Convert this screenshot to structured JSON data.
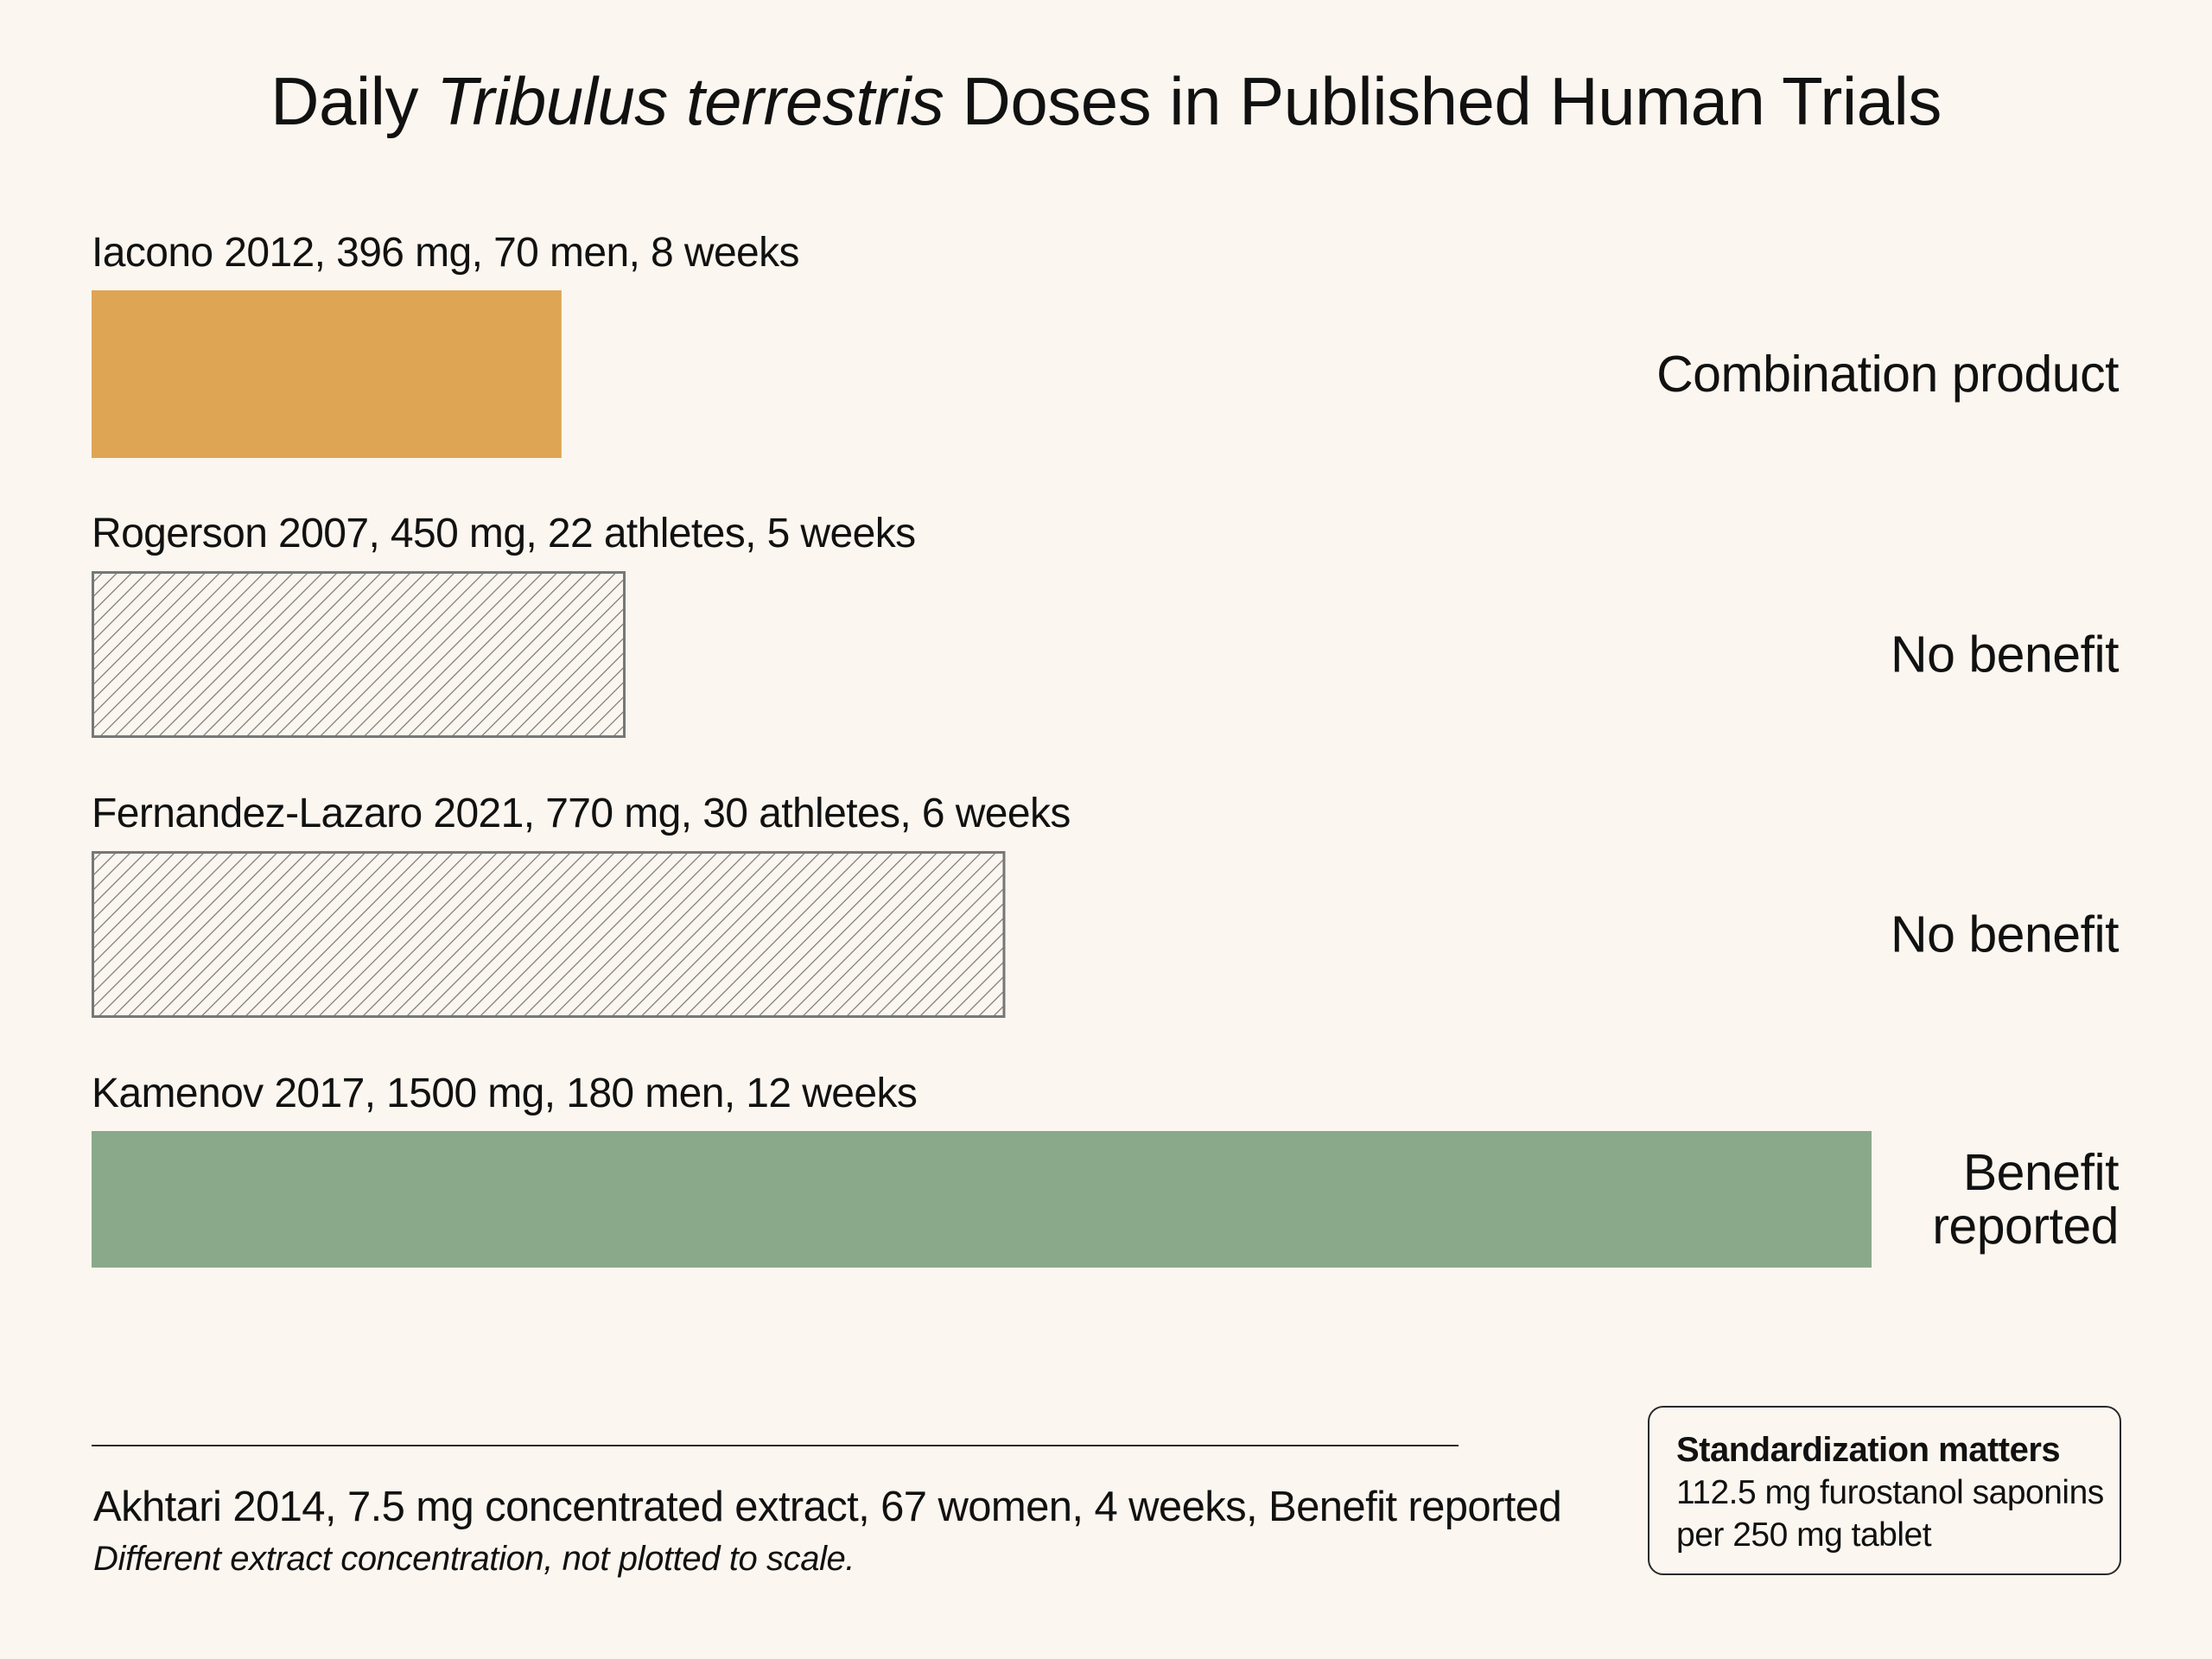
{
  "chart_data": {
    "type": "bar",
    "orientation": "horizontal",
    "title_parts": [
      "Daily ",
      "Tribulus terrestris",
      " Doses in Published Human Trials"
    ],
    "unit": "mg",
    "xlim": [
      0,
      1500
    ],
    "bars": [
      {
        "label": "Iacono 2012, 396 mg, 70 men, 8 weeks",
        "value": 396,
        "outcome": "Combination product",
        "fill": "solid",
        "color": "#dea554"
      },
      {
        "label": "Rogerson 2007, 450 mg, 22 athletes, 5 weeks",
        "value": 450,
        "outcome": "No benefit",
        "fill": "hatched",
        "color": "#777777"
      },
      {
        "label": "Fernandez-Lazaro 2021, 770 mg, 30 athletes, 6 weeks",
        "value": 770,
        "outcome": "No benefit",
        "fill": "hatched",
        "color": "#777777"
      },
      {
        "label": "Kamenov 2017, 1500 mg, 180 men, 12 weeks",
        "value": 1500,
        "outcome_lines": [
          "Benefit",
          "reported"
        ],
        "fill": "solid",
        "color": "#8aa98a"
      }
    ]
  },
  "footnote": {
    "text": "Akhtari 2014, 7.5 mg concentrated extract, 67 women, 4 weeks, Benefit reported",
    "subtext": "Different extract concentration, not plotted to scale."
  },
  "callout": {
    "title": "Standardization matters",
    "line1": "112.5 mg furostanol saponins",
    "line2": "per 250 mg tablet"
  },
  "colors": {
    "background": "#fbf6ef",
    "text": "#111111",
    "hatch_stroke": "#777777"
  }
}
